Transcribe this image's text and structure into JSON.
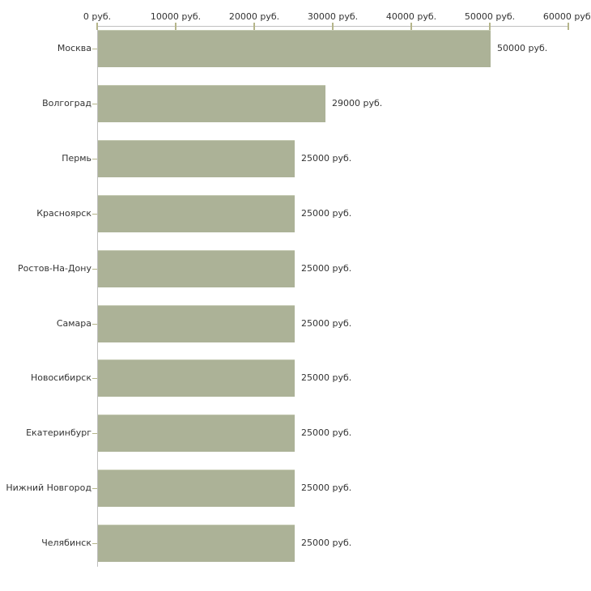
{
  "chart_data": {
    "type": "bar",
    "orientation": "horizontal",
    "title": "",
    "categories": [
      "Москва",
      "Волгоград",
      "Пермь",
      "Красноярск",
      "Ростов-На-Дону",
      "Самара",
      "Новосибирск",
      "Екатеринбург",
      "Нижний Новгород",
      "Челябинск"
    ],
    "values": [
      50000,
      29000,
      25000,
      25000,
      25000,
      25000,
      25000,
      25000,
      25000,
      25000
    ],
    "value_labels": [
      "50000 руб.",
      "29000 руб.",
      "25000 руб.",
      "25000 руб.",
      "25000 руб.",
      "25000 руб.",
      "25000 руб.",
      "25000 руб.",
      "25000 руб.",
      "25000 руб."
    ],
    "unit": "руб.",
    "x_axis": {
      "position": "top",
      "range": [
        0,
        60000
      ],
      "ticks": [
        0,
        10000,
        20000,
        30000,
        40000,
        50000,
        60000
      ],
      "tick_labels": [
        "0 руб.",
        "10000 руб.",
        "20000 руб.",
        "30000 руб.",
        "40000 руб.",
        "50000 руб.",
        "60000 руб."
      ]
    },
    "grid": "off",
    "legend": "none",
    "colors": {
      "bar_fill": "#acb297",
      "bar_top_edge": "#c3c8b0",
      "axis_line": "#c0c0c0",
      "tick_mark": "#b5b58a",
      "text": "#333333"
    }
  }
}
